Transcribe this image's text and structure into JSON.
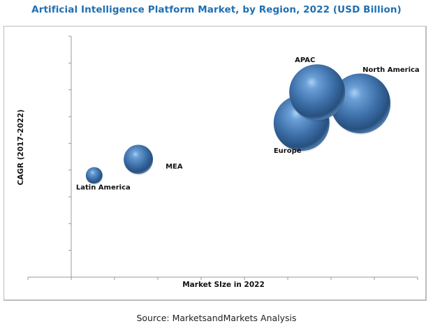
{
  "chart_data": {
    "type": "scatter",
    "subtype": "bubble",
    "title": "Artificial Intelligence Platform Market, by Region, 2022 (USD Billion)",
    "xlabel": "Market SIze in 2022",
    "ylabel": "CAGR (2017-2022)",
    "xlim": [
      -1,
      8
    ],
    "ylim": [
      0,
      9
    ],
    "x_ticks": 10,
    "y_ticks": 10,
    "grid": false,
    "points": [
      {
        "label": "Latin America",
        "x": 0.53,
        "y": 3.8,
        "size": 12
      },
      {
        "label": "MEA",
        "x": 1.55,
        "y": 4.4,
        "size": 21
      },
      {
        "label": "Europe",
        "x": 5.32,
        "y": 5.76,
        "size": 40
      },
      {
        "label": "APAC",
        "x": 5.68,
        "y": 6.91,
        "size": 40
      },
      {
        "label": "North America",
        "x": 6.68,
        "y": 6.49,
        "size": 43
      }
    ],
    "bubble_color": "#3d6fa8"
  },
  "source": "Source: MarketsandMarkets Analysis"
}
